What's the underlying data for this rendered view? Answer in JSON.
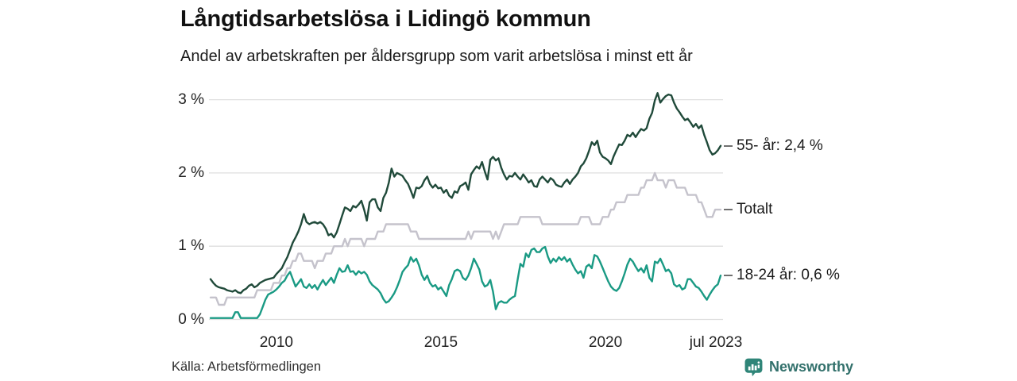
{
  "header": {
    "title": "Långtidsarbetslösa i Lidingö kommun",
    "subtitle": "Andel av arbetskraften per åldersgrupp som varit arbetslösa i minst ett år"
  },
  "footer": {
    "source": "Källa: Arbetsförmedlingen",
    "brand": "Newsworthy",
    "brand_icon": "newsworthy-bubble-barchart-icon",
    "brand_color": "#2f8578",
    "brand_text_color": "#33716c"
  },
  "chart_data": {
    "type": "line",
    "title": "Långtidsarbetslösa i Lidingö kommun",
    "subtitle": "Andel av arbetskraften per åldersgrupp som varit arbetslösa i minst ett år",
    "x_unit": "month",
    "x_start_year": 2008,
    "x_end_label": "jul 2023",
    "ylim": [
      0,
      3.25
    ],
    "grid": "horizontal",
    "gridline_color": "#dfdfdf",
    "legend_position": "right-end-labels",
    "y_ticks": [
      {
        "label": "0 %",
        "value": 0
      },
      {
        "label": "1 %",
        "value": 1
      },
      {
        "label": "2 %",
        "value": 2
      },
      {
        "label": "3 %",
        "value": 3
      }
    ],
    "x_ticks": [
      {
        "label": "2010",
        "t": 2010
      },
      {
        "label": "2015",
        "t": 2015
      },
      {
        "label": "2020",
        "t": 2020
      },
      {
        "label": "jul 2023",
        "t": 2023.5,
        "dx": -6
      }
    ],
    "series": [
      {
        "name": "55- år",
        "end_label": "55- år: 2,4 %",
        "end_value": "2,4 %",
        "color": "#204a3a",
        "values": [
          0.55,
          0.5,
          0.46,
          0.44,
          0.43,
          0.42,
          0.4,
          0.39,
          0.38,
          0.4,
          0.37,
          0.36,
          0.4,
          0.42,
          0.46,
          0.48,
          0.44,
          0.46,
          0.5,
          0.52,
          0.54,
          0.55,
          0.56,
          0.57,
          0.62,
          0.66,
          0.7,
          0.78,
          0.85,
          0.95,
          1.05,
          1.12,
          1.2,
          1.3,
          1.44,
          1.33,
          1.3,
          1.32,
          1.33,
          1.31,
          1.33,
          1.3,
          1.24,
          1.15,
          1.17,
          1.12,
          1.19,
          1.3,
          1.42,
          1.53,
          1.51,
          1.48,
          1.55,
          1.53,
          1.57,
          1.62,
          1.5,
          1.35,
          1.6,
          1.64,
          1.64,
          1.53,
          1.48,
          1.66,
          1.73,
          1.87,
          2.06,
          1.95,
          2.0,
          1.98,
          1.96,
          1.9,
          1.85,
          1.76,
          1.66,
          1.8,
          1.79,
          1.82,
          1.9,
          1.95,
          1.85,
          1.8,
          1.84,
          1.79,
          1.8,
          1.73,
          1.77,
          1.69,
          1.66,
          1.75,
          1.73,
          1.82,
          1.84,
          1.87,
          1.77,
          1.98,
          2.04,
          2.09,
          2.06,
          2.15,
          2.02,
          1.91,
          2.18,
          2.22,
          2.17,
          2.2,
          2.07,
          1.98,
          1.91,
          1.96,
          1.95,
          2.0,
          1.95,
          1.91,
          1.98,
          1.93,
          1.87,
          1.9,
          1.82,
          1.81,
          1.91,
          1.95,
          1.91,
          1.87,
          1.93,
          1.9,
          1.84,
          1.82,
          1.81,
          1.87,
          1.91,
          1.85,
          1.91,
          1.95,
          2.0,
          2.09,
          2.13,
          2.2,
          2.3,
          2.42,
          2.38,
          2.44,
          2.28,
          2.22,
          2.2,
          2.17,
          2.12,
          2.23,
          2.31,
          2.39,
          2.38,
          2.44,
          2.52,
          2.5,
          2.55,
          2.49,
          2.55,
          2.6,
          2.58,
          2.61,
          2.74,
          2.82,
          2.99,
          3.09,
          2.96,
          3.01,
          3.05,
          3.07,
          3.06,
          2.96,
          2.88,
          2.83,
          2.77,
          2.72,
          2.74,
          2.69,
          2.63,
          2.67,
          2.61,
          2.65,
          2.52,
          2.42,
          2.31,
          2.25,
          2.27,
          2.31,
          2.37
        ]
      },
      {
        "name": "Totalt",
        "end_label": "Totalt",
        "end_value": "1,5 %",
        "color": "#c5c3cc",
        "values": [
          0.3,
          0.3,
          0.3,
          0.2,
          0.2,
          0.2,
          0.3,
          0.3,
          0.3,
          0.3,
          0.3,
          0.3,
          0.3,
          0.3,
          0.3,
          0.3,
          0.3,
          0.4,
          0.4,
          0.4,
          0.4,
          0.4,
          0.4,
          0.5,
          0.5,
          0.5,
          0.6,
          0.6,
          0.7,
          0.7,
          0.8,
          0.8,
          0.9,
          0.9,
          0.8,
          0.8,
          0.8,
          0.8,
          0.7,
          0.8,
          0.8,
          0.8,
          0.9,
          0.9,
          0.9,
          1.0,
          1.0,
          1.0,
          1.0,
          1.1,
          1.0,
          1.1,
          1.1,
          1.1,
          1.1,
          1.1,
          1.0,
          1.1,
          1.1,
          1.1,
          1.1,
          1.2,
          1.2,
          1.2,
          1.3,
          1.3,
          1.3,
          1.3,
          1.3,
          1.3,
          1.3,
          1.3,
          1.3,
          1.2,
          1.2,
          1.2,
          1.1,
          1.1,
          1.1,
          1.1,
          1.1,
          1.1,
          1.1,
          1.1,
          1.1,
          1.1,
          1.1,
          1.1,
          1.1,
          1.1,
          1.1,
          1.1,
          1.1,
          1.1,
          1.2,
          1.1,
          1.2,
          1.2,
          1.2,
          1.2,
          1.2,
          1.2,
          1.2,
          1.1,
          1.2,
          1.1,
          1.2,
          1.3,
          1.3,
          1.3,
          1.3,
          1.3,
          1.3,
          1.4,
          1.4,
          1.4,
          1.4,
          1.4,
          1.4,
          1.4,
          1.4,
          1.3,
          1.3,
          1.3,
          1.3,
          1.3,
          1.3,
          1.3,
          1.3,
          1.3,
          1.3,
          1.3,
          1.3,
          1.3,
          1.3,
          1.4,
          1.4,
          1.4,
          1.4,
          1.3,
          1.3,
          1.3,
          1.3,
          1.4,
          1.4,
          1.4,
          1.5,
          1.5,
          1.6,
          1.6,
          1.6,
          1.6,
          1.7,
          1.7,
          1.7,
          1.7,
          1.7,
          1.8,
          1.8,
          1.9,
          1.9,
          1.9,
          2.0,
          1.9,
          1.9,
          1.9,
          1.8,
          1.9,
          1.9,
          1.9,
          1.8,
          1.8,
          1.8,
          1.8,
          1.7,
          1.7,
          1.7,
          1.7,
          1.6,
          1.6,
          1.5,
          1.4,
          1.4,
          1.4,
          1.5,
          1.5,
          1.5
        ]
      },
      {
        "name": "18-24 år",
        "end_label": "18-24 år: 0,6 %",
        "end_value": "0,6 %",
        "color": "#1a9a84",
        "values": [
          0.02,
          0.02,
          0.02,
          0.02,
          0.02,
          0.02,
          0.02,
          0.02,
          0.02,
          0.1,
          0.1,
          0.02,
          0.02,
          0.02,
          0.02,
          0.02,
          0.02,
          0.02,
          0.07,
          0.17,
          0.27,
          0.34,
          0.36,
          0.38,
          0.41,
          0.45,
          0.5,
          0.53,
          0.6,
          0.65,
          0.55,
          0.45,
          0.5,
          0.55,
          0.45,
          0.43,
          0.48,
          0.43,
          0.47,
          0.41,
          0.48,
          0.54,
          0.47,
          0.52,
          0.57,
          0.5,
          0.61,
          0.7,
          0.65,
          0.66,
          0.74,
          0.65,
          0.66,
          0.61,
          0.66,
          0.63,
          0.65,
          0.61,
          0.52,
          0.47,
          0.44,
          0.41,
          0.36,
          0.28,
          0.23,
          0.25,
          0.3,
          0.36,
          0.44,
          0.54,
          0.65,
          0.7,
          0.74,
          0.85,
          0.79,
          0.83,
          0.74,
          0.61,
          0.54,
          0.6,
          0.5,
          0.45,
          0.47,
          0.41,
          0.44,
          0.38,
          0.32,
          0.47,
          0.55,
          0.66,
          0.68,
          0.66,
          0.57,
          0.54,
          0.6,
          0.7,
          0.83,
          0.76,
          0.68,
          0.52,
          0.45,
          0.47,
          0.54,
          0.38,
          0.14,
          0.23,
          0.25,
          0.23,
          0.23,
          0.27,
          0.3,
          0.32,
          0.55,
          0.76,
          0.72,
          0.9,
          0.85,
          0.95,
          0.97,
          0.92,
          0.92,
          0.97,
          0.99,
          0.86,
          0.77,
          0.83,
          0.79,
          0.85,
          0.81,
          0.85,
          0.79,
          0.83,
          0.75,
          0.68,
          0.63,
          0.66,
          0.57,
          0.72,
          0.75,
          0.7,
          0.88,
          0.86,
          0.79,
          0.7,
          0.61,
          0.52,
          0.45,
          0.41,
          0.39,
          0.43,
          0.52,
          0.63,
          0.75,
          0.83,
          0.79,
          0.72,
          0.66,
          0.7,
          0.64,
          0.74,
          0.57,
          0.52,
          0.79,
          0.77,
          0.83,
          0.75,
          0.66,
          0.68,
          0.63,
          0.48,
          0.45,
          0.47,
          0.41,
          0.43,
          0.55,
          0.55,
          0.5,
          0.45,
          0.43,
          0.38,
          0.32,
          0.27,
          0.34,
          0.4,
          0.45,
          0.48,
          0.6
        ]
      }
    ]
  }
}
